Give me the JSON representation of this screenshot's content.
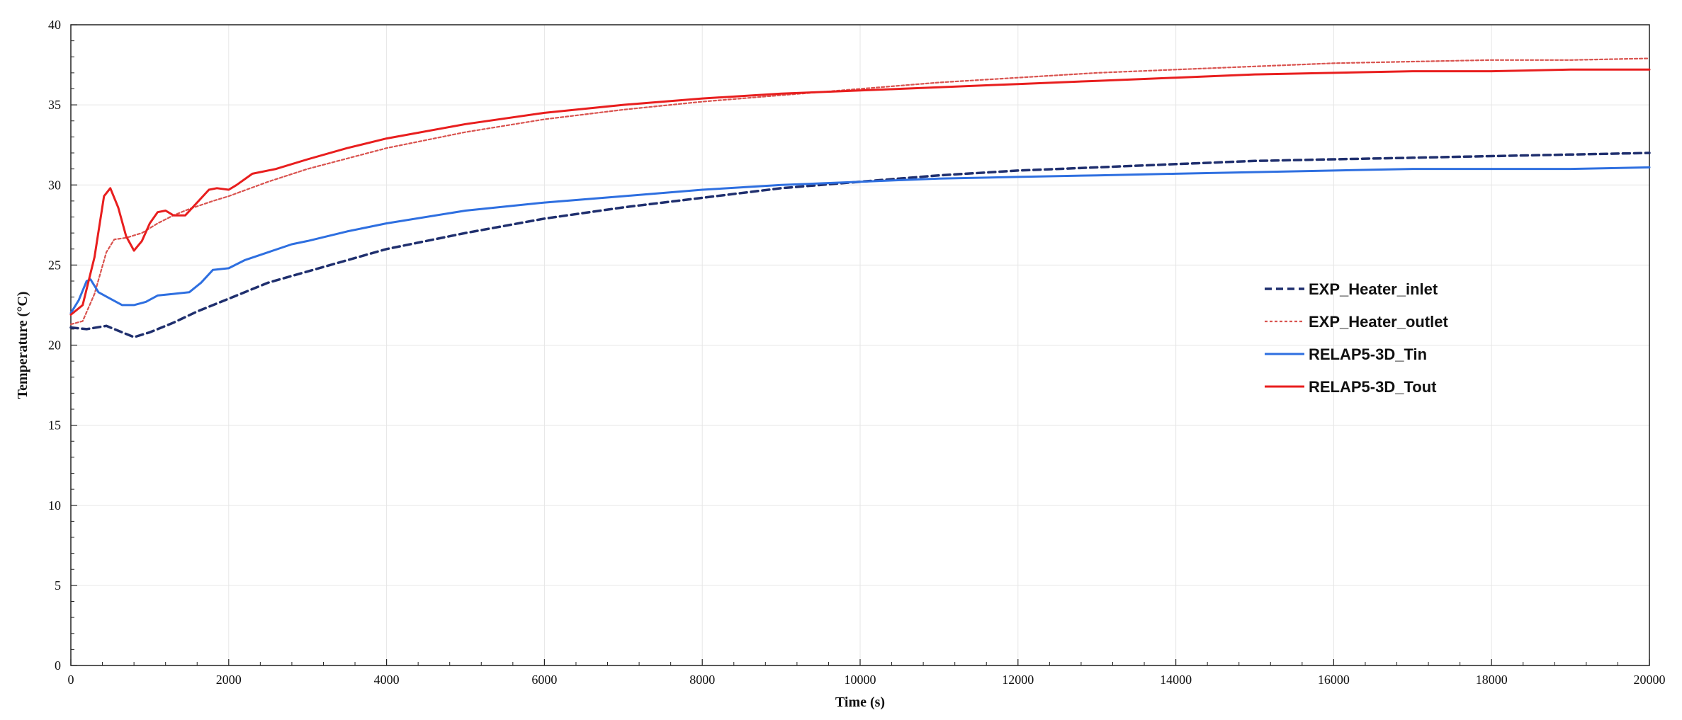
{
  "chart_data": {
    "type": "line",
    "title": "",
    "xlabel": "Time (s)",
    "ylabel": "Temperature (°C)",
    "xlim": [
      0,
      20000
    ],
    "ylim": [
      0,
      40
    ],
    "x_ticks": [
      "0",
      "2000",
      "4000",
      "6000",
      "8000",
      "10000",
      "12000",
      "14000",
      "16000",
      "18000",
      "20000"
    ],
    "y_ticks": [
      "0",
      "5",
      "10",
      "15",
      "20",
      "25",
      "30",
      "35",
      "40"
    ],
    "grid": true,
    "legend_position": "right",
    "series": [
      {
        "name": "EXP_Heater_inlet",
        "color": "#1f2f6e",
        "style": "dashed",
        "x": [
          0,
          200,
          450,
          650,
          800,
          1000,
          1300,
          1600,
          2000,
          2500,
          3000,
          4000,
          5000,
          6000,
          7000,
          8000,
          9000,
          10000,
          11000,
          12000,
          13000,
          14000,
          15000,
          16000,
          17000,
          18000,
          19000,
          20000
        ],
        "y": [
          21.1,
          21.0,
          21.2,
          20.8,
          20.5,
          20.8,
          21.4,
          22.1,
          22.9,
          23.9,
          24.6,
          26.0,
          27.0,
          27.9,
          28.6,
          29.2,
          29.8,
          30.2,
          30.6,
          30.9,
          31.1,
          31.3,
          31.5,
          31.6,
          31.7,
          31.8,
          31.9,
          32.0
        ]
      },
      {
        "name": "EXP_Heater_outlet",
        "color": "#d9534f",
        "style": "dotted",
        "x": [
          0,
          150,
          300,
          450,
          550,
          700,
          900,
          1100,
          1300,
          1500,
          1800,
          2000,
          2500,
          3000,
          4000,
          5000,
          6000,
          7000,
          8000,
          9000,
          10000,
          11000,
          12000,
          13000,
          14000,
          15000,
          16000,
          17000,
          18000,
          19000,
          20000
        ],
        "y": [
          21.3,
          21.5,
          23.2,
          25.8,
          26.6,
          26.7,
          27.0,
          27.6,
          28.1,
          28.5,
          29.0,
          29.3,
          30.2,
          31.0,
          32.3,
          33.3,
          34.1,
          34.7,
          35.2,
          35.6,
          36.0,
          36.4,
          36.7,
          37.0,
          37.2,
          37.4,
          37.6,
          37.7,
          37.8,
          37.8,
          37.9
        ]
      },
      {
        "name": "RELAP5-3D_Tin",
        "color": "#2e6fe0",
        "style": "solid",
        "x": [
          0,
          100,
          200,
          250,
          350,
          500,
          650,
          800,
          950,
          1100,
          1300,
          1500,
          1650,
          1800,
          2000,
          2200,
          2500,
          2800,
          3000,
          3500,
          4000,
          5000,
          6000,
          7000,
          8000,
          9000,
          10000,
          11000,
          12000,
          13000,
          14000,
          15000,
          16000,
          17000,
          18000,
          19000,
          20000
        ],
        "y": [
          22.0,
          22.8,
          24.0,
          24.1,
          23.3,
          22.9,
          22.5,
          22.5,
          22.7,
          23.1,
          23.2,
          23.3,
          23.9,
          24.7,
          24.8,
          25.3,
          25.8,
          26.3,
          26.5,
          27.1,
          27.6,
          28.4,
          28.9,
          29.3,
          29.7,
          30.0,
          30.2,
          30.4,
          30.5,
          30.6,
          30.7,
          30.8,
          30.9,
          31.0,
          31.0,
          31.0,
          31.1
        ]
      },
      {
        "name": "RELAP5-3D_Tout",
        "color": "#e81e1e",
        "style": "solid",
        "x": [
          0,
          150,
          300,
          420,
          500,
          600,
          700,
          800,
          900,
          1000,
          1100,
          1200,
          1300,
          1450,
          1600,
          1750,
          1850,
          2000,
          2100,
          2300,
          2600,
          3000,
          3500,
          4000,
          5000,
          6000,
          7000,
          8000,
          9000,
          10000,
          11000,
          12000,
          13000,
          14000,
          15000,
          16000,
          17000,
          18000,
          19000,
          20000
        ],
        "y": [
          21.9,
          22.5,
          25.5,
          29.3,
          29.8,
          28.6,
          26.8,
          25.9,
          26.5,
          27.6,
          28.3,
          28.4,
          28.1,
          28.1,
          28.9,
          29.7,
          29.8,
          29.7,
          30.0,
          30.7,
          31.0,
          31.6,
          32.3,
          32.9,
          33.8,
          34.5,
          35.0,
          35.4,
          35.7,
          35.9,
          36.1,
          36.3,
          36.5,
          36.7,
          36.9,
          37.0,
          37.1,
          37.1,
          37.2,
          37.2
        ]
      }
    ]
  }
}
